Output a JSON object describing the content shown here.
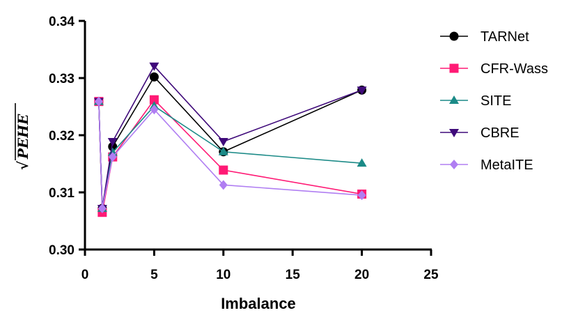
{
  "chart_data": {
    "type": "line",
    "title": "",
    "xlabel": "Imbalance",
    "ylabel": "√PEHE",
    "ylabel_root": "√",
    "ylabel_text": "PEHE",
    "xlim": [
      0,
      25
    ],
    "ylim": [
      0.3,
      0.34
    ],
    "xticks": [
      0,
      5,
      10,
      15,
      20,
      25
    ],
    "xtick_labels": [
      "0",
      "5",
      "10",
      "15",
      "20",
      "25"
    ],
    "yticks": [
      0.3,
      0.31,
      0.32,
      0.33,
      0.34
    ],
    "ytick_labels": [
      "0.30",
      "0.31",
      "0.32",
      "0.33",
      "0.34"
    ],
    "grid": false,
    "legend_position": "right",
    "x": [
      1,
      1.25,
      2,
      5,
      10,
      20
    ],
    "series": [
      {
        "name": "TARNet",
        "marker": "circle",
        "color": "#000000",
        "values": [
          0.3259,
          0.3072,
          0.318,
          0.3302,
          0.3171,
          0.3279
        ]
      },
      {
        "name": "CFR-Wass",
        "marker": "square",
        "color": "#ff1a75",
        "values": [
          0.3259,
          0.3065,
          0.3162,
          0.3262,
          0.3139,
          0.3097
        ]
      },
      {
        "name": "SITE",
        "marker": "triangle-up",
        "color": "#1b8a87",
        "values": [
          0.3259,
          0.3072,
          0.317,
          0.3251,
          0.3171,
          0.3151
        ]
      },
      {
        "name": "CBRE",
        "marker": "triangle-down",
        "color": "#3f0a7a",
        "values": [
          0.3259,
          0.3072,
          0.3189,
          0.3321,
          0.3189,
          0.3279
        ]
      },
      {
        "name": "MetaITE",
        "marker": "diamond",
        "color": "#b07ef2",
        "values": [
          0.3259,
          0.3072,
          0.3162,
          0.3245,
          0.3113,
          0.3095
        ]
      }
    ]
  }
}
